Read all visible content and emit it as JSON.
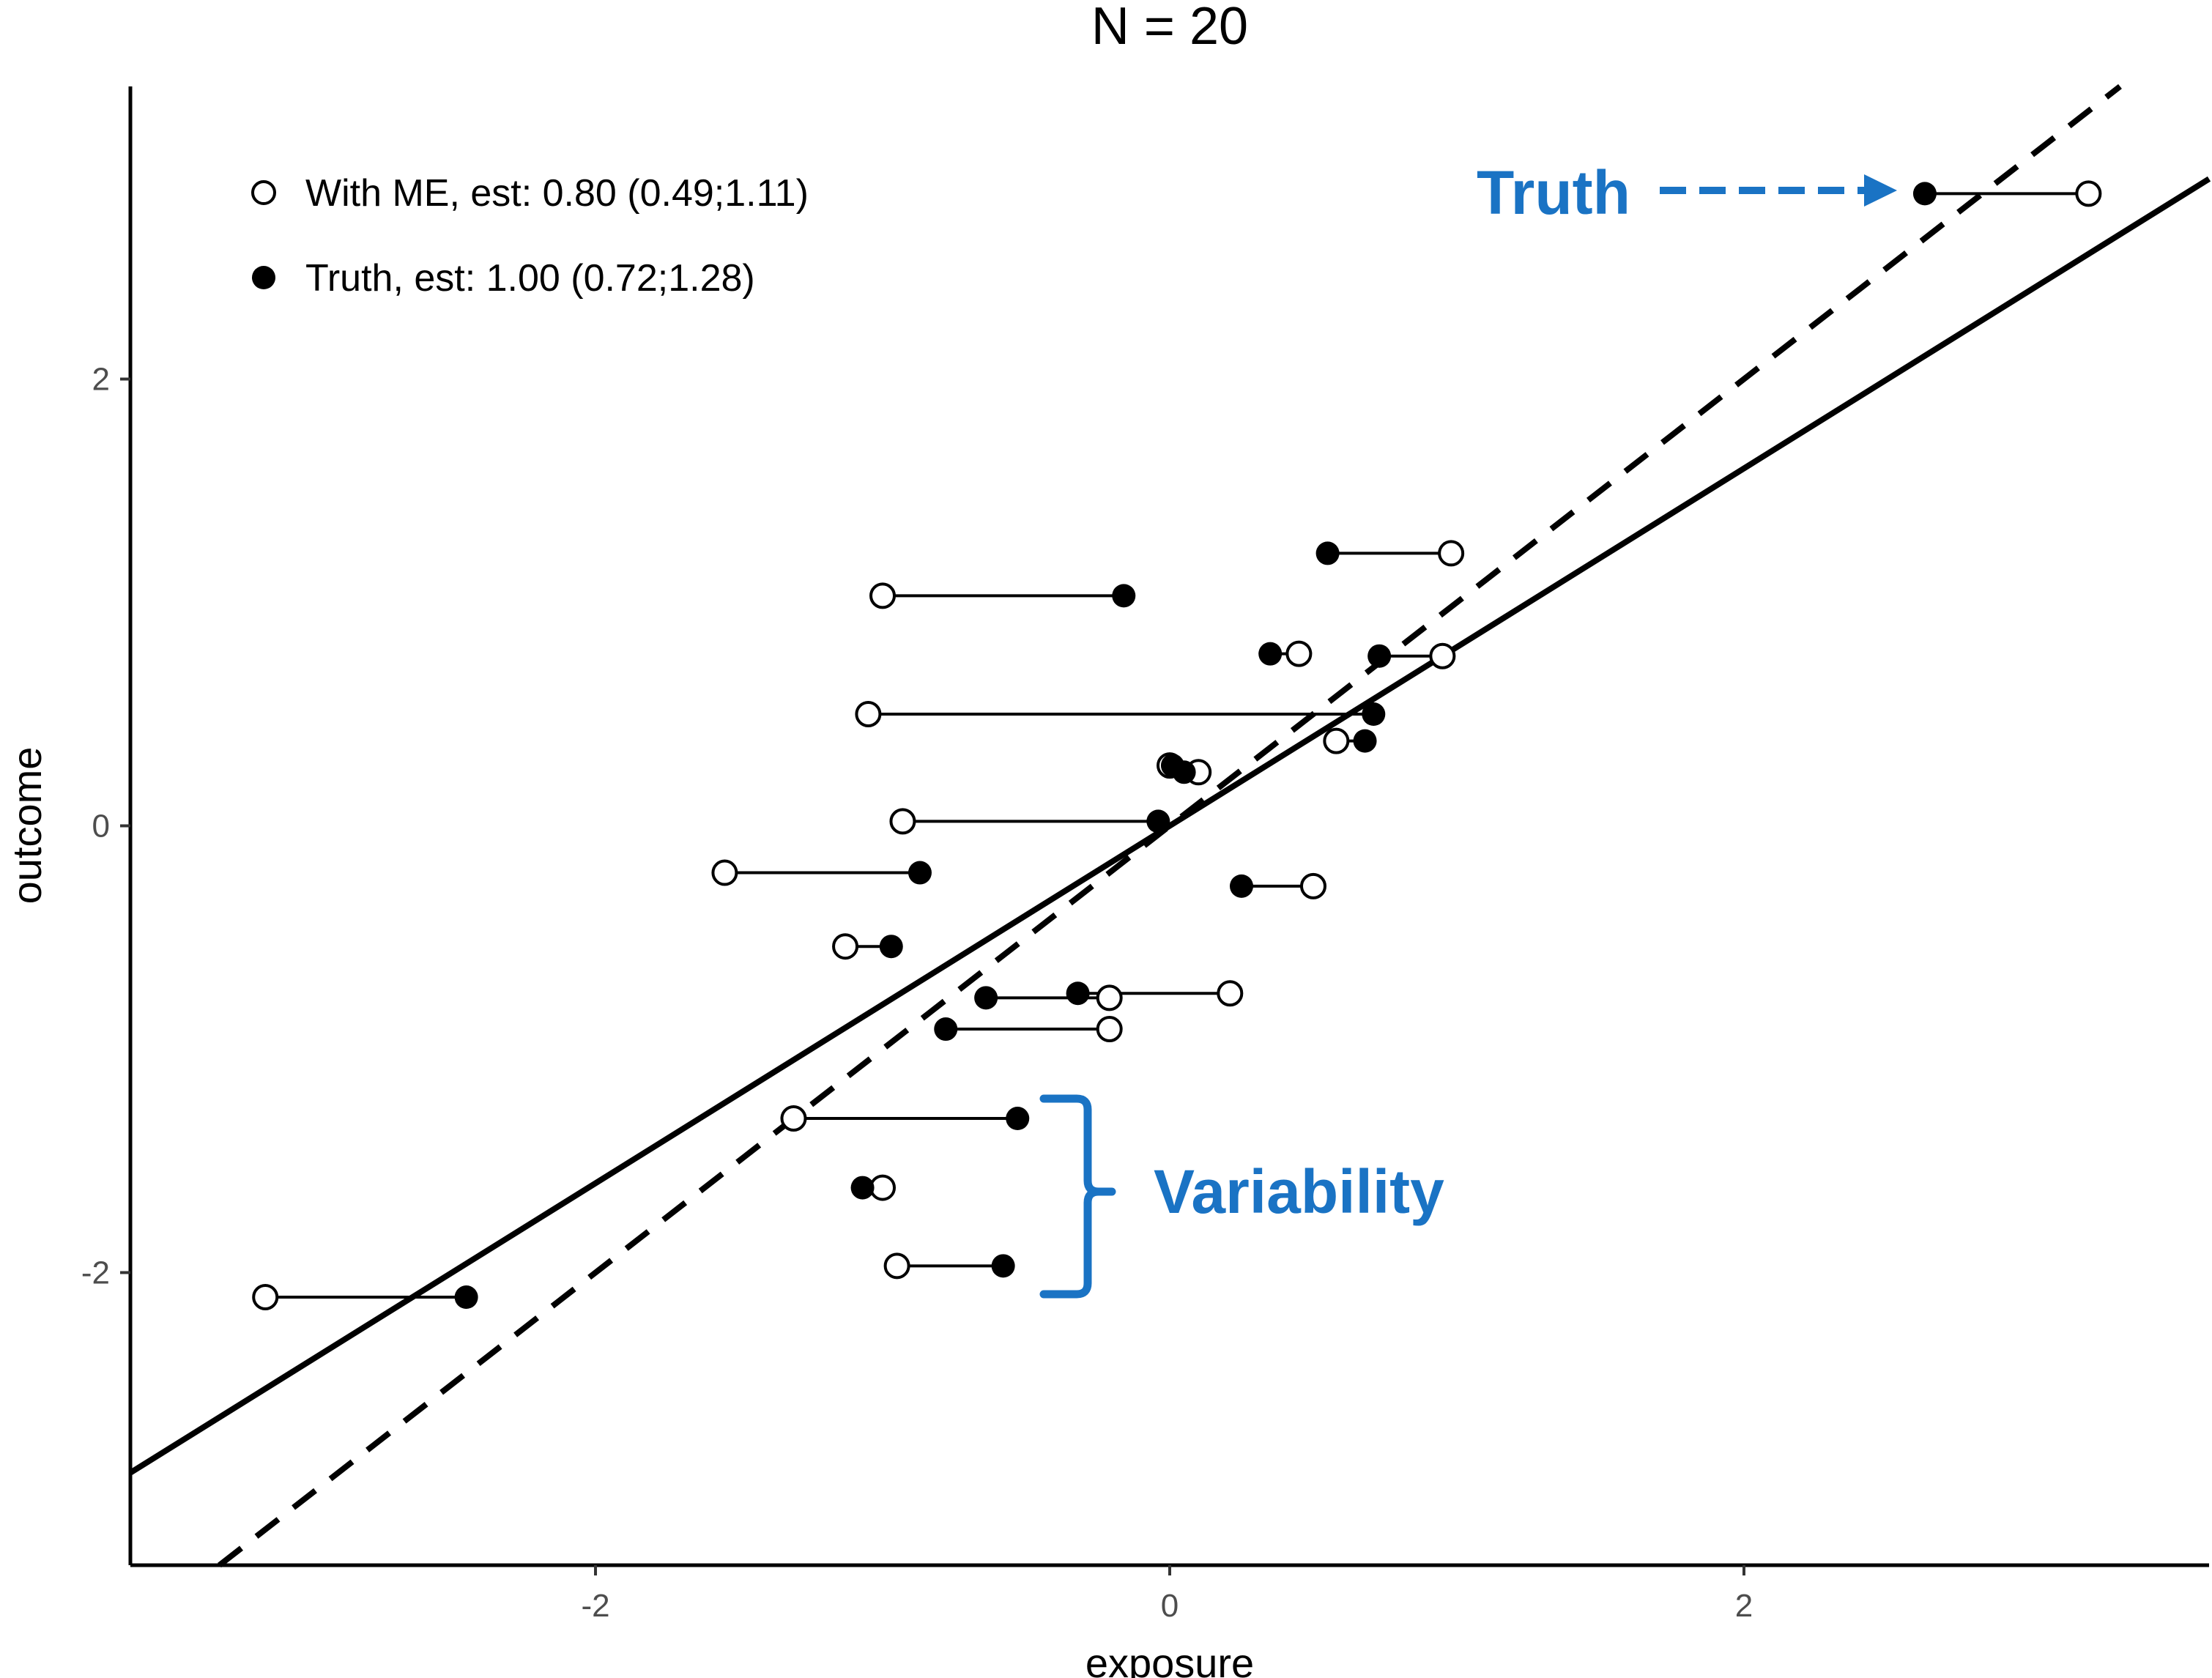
{
  "chart_data": {
    "type": "scatter",
    "title": "N = 20",
    "xlabel": "exposure",
    "ylabel": "outcome",
    "xlim": [
      -3.62,
      3.62
    ],
    "ylim": [
      -3.31,
      3.31
    ],
    "xticks": [
      -2,
      0,
      2
    ],
    "yticks": [
      -2,
      0,
      2
    ],
    "grid": false,
    "legend_position": "top-left",
    "series": [
      {
        "name": "With ME, est: 0.80 (0.49;1.11)",
        "marker": "open-circle",
        "x": [
          3.2,
          0.98,
          -1.0,
          0.45,
          0.95,
          -1.05,
          0.58,
          0.0,
          0.1,
          -0.93,
          -1.55,
          0.5,
          -1.13,
          0.21,
          -0.21,
          -0.21,
          -1.31,
          -1.0,
          -0.95,
          -3.15
        ],
        "y": [
          2.83,
          1.22,
          1.03,
          0.77,
          0.76,
          0.5,
          0.38,
          0.27,
          0.24,
          0.02,
          -0.21,
          -0.27,
          -0.54,
          -0.75,
          -0.77,
          -0.91,
          -1.31,
          -1.62,
          -1.97,
          -2.11
        ]
      },
      {
        "name": "Truth, est: 1.00 (0.72;1.28)",
        "marker": "filled-circle",
        "x": [
          2.63,
          0.55,
          -0.16,
          0.35,
          0.73,
          0.71,
          0.68,
          0.01,
          0.05,
          -0.04,
          -0.87,
          0.25,
          -0.97,
          -0.32,
          -0.64,
          -0.78,
          -0.53,
          -1.07,
          -0.58,
          -2.45
        ],
        "y": [
          2.83,
          1.22,
          1.03,
          0.77,
          0.76,
          0.5,
          0.38,
          0.27,
          0.24,
          0.02,
          -0.21,
          -0.27,
          -0.54,
          -0.75,
          -0.77,
          -0.91,
          -1.31,
          -1.62,
          -1.97,
          -2.11
        ]
      }
    ],
    "lines": [
      {
        "kind": "solid",
        "slope": 0.8,
        "intercept": 0.0
      },
      {
        "kind": "dashed",
        "slope": 1.0,
        "intercept": 0.0
      }
    ],
    "annotations": {
      "truth_label": "Truth",
      "variability_label": "Variability",
      "color": "#1a73c4"
    }
  },
  "colors": {
    "accent": "#1a73c4",
    "ink": "#000000",
    "tick": "#4d4d4d"
  }
}
